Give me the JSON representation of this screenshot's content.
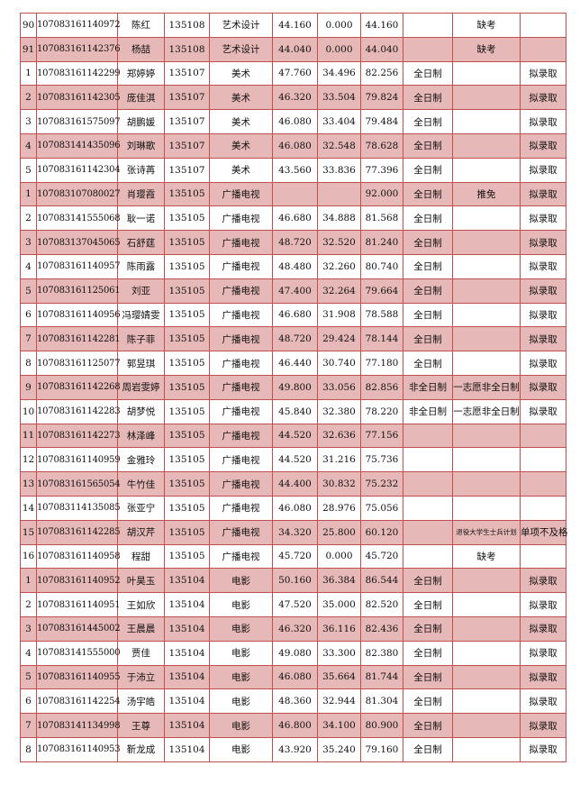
{
  "colors": {
    "border": "#c0504d",
    "stripe": "#e6b8b7"
  },
  "rows": [
    [
      "90",
      "107083161140972",
      "陈红",
      "135108",
      "艺术设计",
      "44.160",
      "0.000",
      "44.160",
      "",
      "缺考",
      ""
    ],
    [
      "91",
      "107083161142376",
      "杨喆",
      "135108",
      "艺术设计",
      "44.040",
      "0.000",
      "44.040",
      "",
      "缺考",
      ""
    ],
    [
      "1",
      "107083161142299",
      "郑婷婷",
      "135107",
      "美术",
      "47.760",
      "34.496",
      "82.256",
      "全日制",
      "",
      "拟录取"
    ],
    [
      "2",
      "107083161142305",
      "庞佳淇",
      "135107",
      "美术",
      "46.320",
      "33.504",
      "79.824",
      "全日制",
      "",
      "拟录取"
    ],
    [
      "3",
      "107083161575097",
      "胡鹏媛",
      "135107",
      "美术",
      "46.080",
      "33.404",
      "79.484",
      "全日制",
      "",
      "拟录取"
    ],
    [
      "4",
      "107083141435096",
      "刘琳歌",
      "135107",
      "美术",
      "46.080",
      "32.548",
      "78.628",
      "全日制",
      "",
      "拟录取"
    ],
    [
      "5",
      "107083161142304",
      "张诗苒",
      "135107",
      "美术",
      "43.560",
      "33.836",
      "77.396",
      "全日制",
      "",
      "拟录取"
    ],
    [
      "1",
      "107083107080027",
      "肖璎霞",
      "135105",
      "广播电视",
      "",
      "",
      "92.000",
      "全日制",
      "推免",
      "拟录取"
    ],
    [
      "2",
      "107083141555068",
      "耿一诺",
      "135105",
      "广播电视",
      "46.680",
      "34.888",
      "81.568",
      "全日制",
      "",
      "拟录取"
    ],
    [
      "3",
      "107083137045065",
      "石舒莛",
      "135105",
      "广播电视",
      "48.720",
      "32.520",
      "81.240",
      "全日制",
      "",
      "拟录取"
    ],
    [
      "4",
      "107083161140957",
      "陈雨露",
      "135105",
      "广播电视",
      "48.480",
      "32.260",
      "80.740",
      "全日制",
      "",
      "拟录取"
    ],
    [
      "5",
      "107083161125061",
      "刘亚",
      "135105",
      "广播电视",
      "47.400",
      "32.264",
      "79.664",
      "全日制",
      "",
      "拟录取"
    ],
    [
      "6",
      "107083161140956",
      "冯璎婧雯",
      "135105",
      "广播电视",
      "46.680",
      "31.908",
      "78.588",
      "全日制",
      "",
      "拟录取"
    ],
    [
      "7",
      "107083161142281",
      "陈子菲",
      "135105",
      "广播电视",
      "48.720",
      "29.424",
      "78.144",
      "全日制",
      "",
      "拟录取"
    ],
    [
      "8",
      "107083161125077",
      "郭昱琪",
      "135105",
      "广播电视",
      "46.440",
      "30.740",
      "77.180",
      "全日制",
      "",
      "拟录取"
    ],
    [
      "9",
      "107083161142268",
      "周岩雯婷",
      "135105",
      "广播电视",
      "49.800",
      "33.056",
      "82.856",
      "非全日制",
      "一志愿非全日制",
      "拟录取"
    ],
    [
      "10",
      "107083161142283",
      "胡梦悦",
      "135105",
      "广播电视",
      "45.840",
      "32.380",
      "78.220",
      "非全日制",
      "一志愿非全日制",
      "拟录取"
    ],
    [
      "11",
      "107083161142273",
      "林泽峰",
      "135105",
      "广播电视",
      "44.520",
      "32.636",
      "77.156",
      "",
      "",
      ""
    ],
    [
      "12",
      "107083161140959",
      "金雅玲",
      "135105",
      "广播电视",
      "44.520",
      "31.216",
      "75.736",
      "",
      "",
      ""
    ],
    [
      "13",
      "107083161565054",
      "牛竹佳",
      "135105",
      "广播电视",
      "44.400",
      "30.832",
      "75.232",
      "",
      "",
      ""
    ],
    [
      "14",
      "107083114135085",
      "张亚宁",
      "135105",
      "广播电视",
      "46.080",
      "28.976",
      "75.056",
      "",
      "",
      ""
    ],
    [
      "15",
      "107083161142285",
      "胡汉芹",
      "135105",
      "广播电视",
      "34.320",
      "25.800",
      "60.120",
      "",
      "退役大学生士兵计划",
      "单项不及格"
    ],
    [
      "16",
      "107083161140958",
      "程甜",
      "135105",
      "广播电视",
      "45.720",
      "0.000",
      "45.720",
      "",
      "缺考",
      ""
    ],
    [
      "1",
      "107083161140952",
      "叶昊玉",
      "135104",
      "电影",
      "50.160",
      "36.384",
      "86.544",
      "全日制",
      "",
      "拟录取"
    ],
    [
      "2",
      "107083161140951",
      "王如欣",
      "135104",
      "电影",
      "47.520",
      "35.000",
      "82.520",
      "全日制",
      "",
      "拟录取"
    ],
    [
      "3",
      "107083161445002",
      "王晨晨",
      "135104",
      "电影",
      "46.320",
      "36.116",
      "82.436",
      "全日制",
      "",
      "拟录取"
    ],
    [
      "4",
      "107083141555000",
      "贾佳",
      "135104",
      "电影",
      "49.080",
      "33.300",
      "82.380",
      "全日制",
      "",
      "拟录取"
    ],
    [
      "5",
      "107083161140955",
      "于沛立",
      "135104",
      "电影",
      "46.080",
      "35.664",
      "81.744",
      "全日制",
      "",
      "拟录取"
    ],
    [
      "6",
      "107083161142254",
      "汤宇皓",
      "135104",
      "电影",
      "48.360",
      "32.944",
      "81.304",
      "全日制",
      "",
      "拟录取"
    ],
    [
      "7",
      "107083141134998",
      "王尊",
      "135104",
      "电影",
      "46.800",
      "34.100",
      "80.900",
      "全日制",
      "",
      "拟录取"
    ],
    [
      "8",
      "107083161140953",
      "靳龙成",
      "135104",
      "电影",
      "43.920",
      "35.240",
      "79.160",
      "全日制",
      "",
      "拟录取"
    ]
  ]
}
